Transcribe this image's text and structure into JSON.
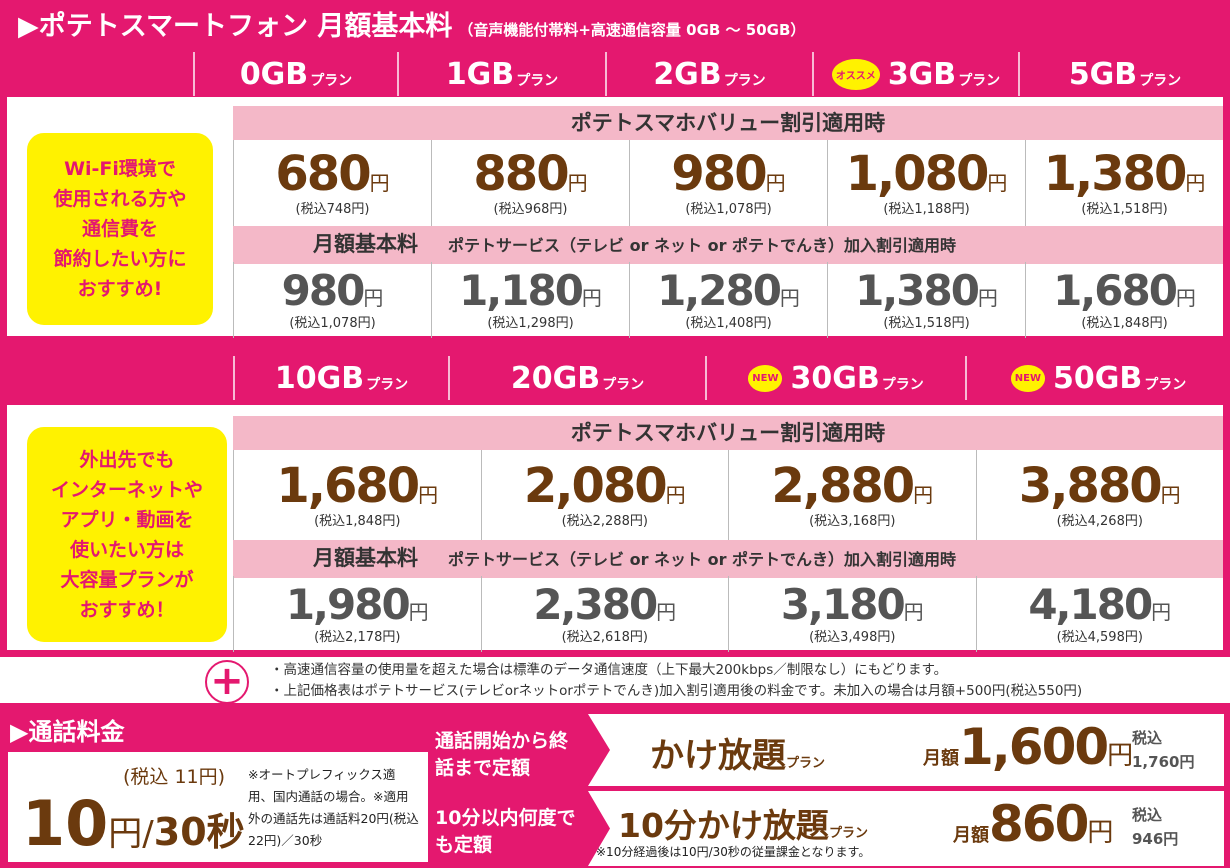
{
  "header": {
    "title": "▶ポテトスマートフォン 月額基本料",
    "subtitle": "（音声機能付帯料+高速通信容量 0GB ～ 50GB）"
  },
  "plan_suffix": "プラン",
  "value_band": "ポテトスマホバリュー割引適用時",
  "service_band": {
    "label": "月額基本料",
    "text": "ポテトサービス（テレビ or ネット or ポテトでんき）加入割引適用時"
  },
  "yen": "円",
  "section1": {
    "recommend": [
      "Wi-Fi環境で",
      "使用される方や",
      "通信費を",
      "節約したい方に",
      "おすすめ!"
    ],
    "plans": [
      {
        "name": "0GB",
        "badge": "",
        "value_price": "680",
        "value_tax": "(税込748円)",
        "service_price": "980",
        "service_tax": "(税込1,078円)"
      },
      {
        "name": "1GB",
        "badge": "",
        "value_price": "880",
        "value_tax": "(税込968円)",
        "service_price": "1,180",
        "service_tax": "(税込1,298円)"
      },
      {
        "name": "2GB",
        "badge": "",
        "value_price": "980",
        "value_tax": "(税込1,078円)",
        "service_price": "1,280",
        "service_tax": "(税込1,408円)"
      },
      {
        "name": "3GB",
        "badge": "オススメ",
        "value_price": "1,080",
        "value_tax": "(税込1,188円)",
        "service_price": "1,380",
        "service_tax": "(税込1,518円)"
      },
      {
        "name": "5GB",
        "badge": "",
        "value_price": "1,380",
        "value_tax": "(税込1,518円)",
        "service_price": "1,680",
        "service_tax": "(税込1,848円)"
      }
    ]
  },
  "section2": {
    "recommend": [
      "外出先でも",
      "インターネットや",
      "アプリ・動画を",
      "使いたい方は",
      "大容量プランが",
      "おすすめ！"
    ],
    "plans": [
      {
        "name": "10GB",
        "badge": "",
        "value_price": "1,680",
        "value_tax": "(税込1,848円)",
        "service_price": "1,980",
        "service_tax": "(税込2,178円)"
      },
      {
        "name": "20GB",
        "badge": "",
        "value_price": "2,080",
        "value_tax": "(税込2,288円)",
        "service_price": "2,380",
        "service_tax": "(税込2,618円)"
      },
      {
        "name": "30GB",
        "badge": "NEW",
        "value_price": "2,880",
        "value_tax": "(税込3,168円)",
        "service_price": "3,180",
        "service_tax": "(税込3,498円)"
      },
      {
        "name": "50GB",
        "badge": "NEW",
        "value_price": "3,880",
        "value_tax": "(税込4,268円)",
        "service_price": "4,180",
        "service_tax": "(税込4,598円)"
      }
    ]
  },
  "notes": [
    "・高速通信容量の使用量を超えた場合は標準のデータ通信速度（上下最大200kbps／制限なし）にもどります。",
    "・上記価格表はポテトサービス(テレビorネットorポテトでんき)加入割引適用後の料金です。未加入の場合は月額+500円(税込550円)"
  ],
  "call": {
    "title": "▶通話料金",
    "tax": "(税込 11円)",
    "rate": "10",
    "rate_unit": "円/",
    "per": "30秒",
    "note": "※オートプレフィックス適用、国内通話の場合。※適用外の通話先は通話料20円(税込22円)／30秒",
    "plans": [
      {
        "desc": "通話開始から終話まで定額",
        "name": "かけ放題",
        "monthly": "月額",
        "price": "1,600",
        "tax_label": "税込",
        "tax": "1,760円",
        "footnote": ""
      },
      {
        "desc": "10分以内何度でも定額",
        "name": "10分かけ放題",
        "monthly": "月額",
        "price": "860",
        "tax_label": "税込",
        "tax": "946円",
        "footnote": "※10分経過後は10円/30秒の従量課金となります。"
      }
    ]
  },
  "colors": {
    "magenta": "#e4186f",
    "pink": "#f4b8c8",
    "brown": "#6b3a0e",
    "yellow": "#fff200"
  }
}
